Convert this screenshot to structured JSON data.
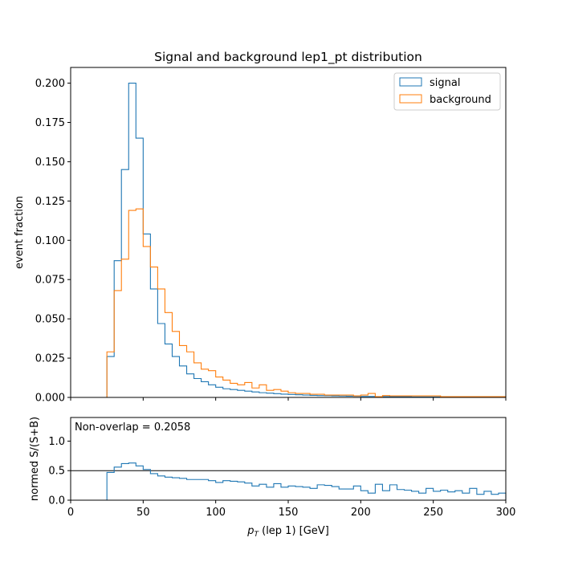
{
  "chart_data": {
    "type": "histogram",
    "title": "Signal and background lep1_pt distribution",
    "bin_width": 5,
    "x_start": 0,
    "xlim": [
      0,
      300
    ],
    "xlabel_main": "p",
    "xlabel_sub": "T",
    "xlabel_rest": " (lep 1) [GeV]",
    "x_ticks": [
      0,
      50,
      100,
      150,
      200,
      250,
      300
    ],
    "x_tick_labels": [
      "0",
      "50",
      "100",
      "150",
      "200",
      "250",
      "300"
    ],
    "top_panel": {
      "ylabel": "event fraction",
      "ylim": [
        0,
        0.21
      ],
      "y_ticks": [
        0,
        0.025,
        0.05,
        0.075,
        0.1,
        0.125,
        0.15,
        0.175,
        0.2
      ],
      "y_tick_labels": [
        "0.000",
        "0.025",
        "0.050",
        "0.075",
        "0.100",
        "0.125",
        "0.150",
        "0.175",
        "0.200"
      ],
      "legend_position": "top-right",
      "series": [
        {
          "name": "signal",
          "color": "#1f77b4",
          "values": [
            0,
            0,
            0,
            0,
            0,
            0.026,
            0.087,
            0.145,
            0.2,
            0.165,
            0.104,
            0.069,
            0.047,
            0.034,
            0.026,
            0.02,
            0.015,
            0.012,
            0.01,
            0.008,
            0.0065,
            0.0055,
            0.005,
            0.0045,
            0.004,
            0.0035,
            0.003,
            0.0027,
            0.0024,
            0.0021,
            0.0019,
            0.0017,
            0.0015,
            0.0013,
            0.0012,
            0.0011,
            0.001,
            0.0009,
            0.0008,
            0.0007,
            0.0006,
            0.0006,
            0.0005,
            0.0005,
            0.0004,
            0.0004,
            0.0004,
            0.0003,
            0.0003,
            0.0003,
            0.0003,
            0.0002,
            0.0002,
            0.0002,
            0.0002,
            0.0002,
            0.0002,
            0.0001,
            0.0001,
            0.0001
          ]
        },
        {
          "name": "background",
          "color": "#ff7f0e",
          "values": [
            0,
            0,
            0,
            0,
            0,
            0.029,
            0.068,
            0.088,
            0.119,
            0.12,
            0.096,
            0.083,
            0.069,
            0.054,
            0.042,
            0.033,
            0.029,
            0.022,
            0.018,
            0.017,
            0.013,
            0.011,
            0.009,
            0.008,
            0.0095,
            0.006,
            0.008,
            0.0045,
            0.005,
            0.004,
            0.003,
            0.0025,
            0.0025,
            0.002,
            0.002,
            0.0015,
            0.0015,
            0.0015,
            0.0015,
            0.001,
            0.0015,
            0.0025,
            0.0005,
            0.0012,
            0.001,
            0.001,
            0.001,
            0.001,
            0.001,
            0.001,
            0.001,
            0.0005,
            0.0005,
            0.0005,
            0.0005,
            0.0005,
            0.0005,
            0.0005,
            0.0005,
            0.0005
          ]
        }
      ]
    },
    "bottom_panel": {
      "ylabel": "normed S/(S+B)",
      "ylim": [
        0,
        1.4
      ],
      "y_ticks": [
        0,
        0.5,
        1.0
      ],
      "y_tick_labels": [
        "0.0",
        "0.5",
        "1.0"
      ],
      "reference_line": 0.5,
      "annotation": "Non-overlap = 0.2058",
      "series": {
        "name": "normed S/(S+B)",
        "color": "#1f77b4",
        "values": [
          0,
          0,
          0,
          0,
          0,
          0.47,
          0.56,
          0.62,
          0.63,
          0.58,
          0.52,
          0.45,
          0.41,
          0.39,
          0.38,
          0.37,
          0.35,
          0.35,
          0.35,
          0.33,
          0.3,
          0.33,
          0.32,
          0.31,
          0.29,
          0.24,
          0.27,
          0.22,
          0.28,
          0.22,
          0.24,
          0.23,
          0.22,
          0.2,
          0.26,
          0.25,
          0.23,
          0.19,
          0.19,
          0.24,
          0.16,
          0.12,
          0.27,
          0.16,
          0.26,
          0.18,
          0.17,
          0.15,
          0.12,
          0.2,
          0.15,
          0.17,
          0.14,
          0.16,
          0.12,
          0.2,
          0.1,
          0.15,
          0.1,
          0.12
        ]
      }
    }
  }
}
